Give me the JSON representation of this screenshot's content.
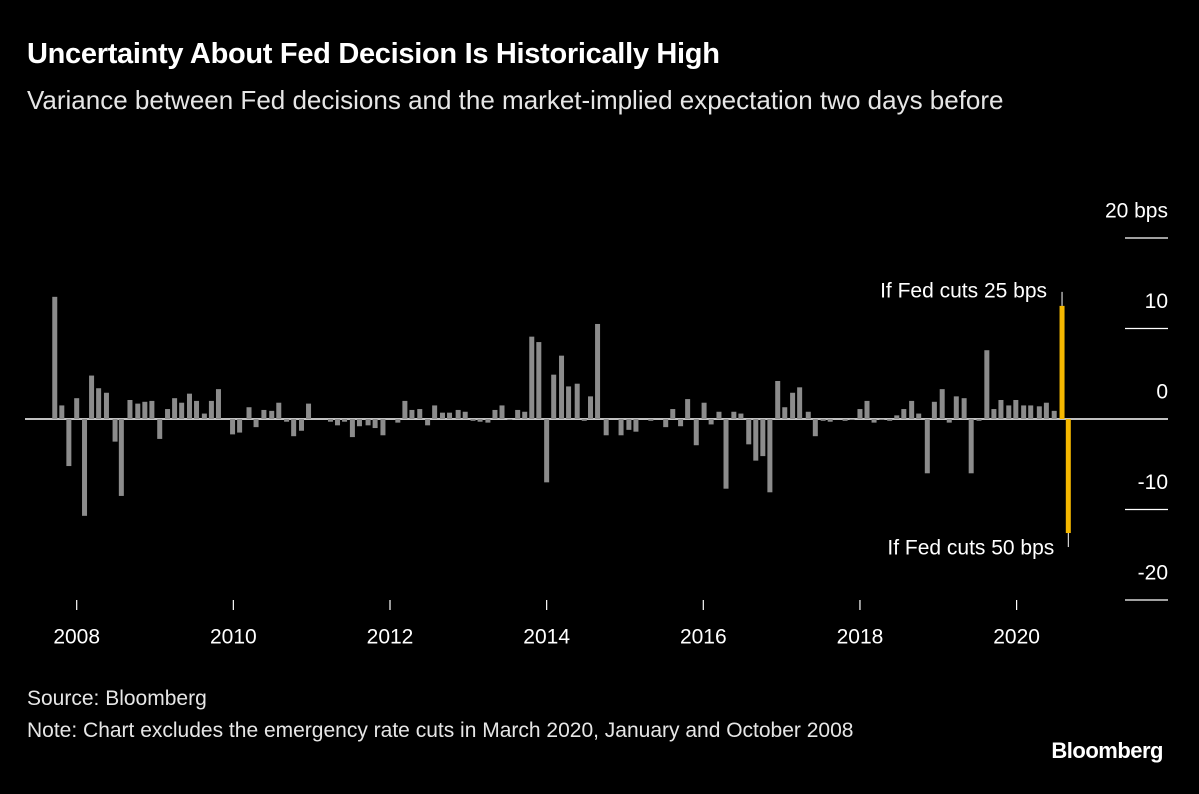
{
  "chart_data": {
    "type": "bar",
    "title": "Uncertainty About Fed Decision Is Historically High",
    "subtitle": "Variance between Fed decisions and the market-implied expectation two days before",
    "source": "Source: Bloomberg",
    "note": "Note: Chart excludes the emergency rate cuts in March 2020, January and October 2008",
    "brand": "Bloomberg",
    "color": "#8c8c8c",
    "x": [
      2007.72,
      2007.81,
      2007.9,
      2008.0,
      2008.1,
      2008.19,
      2008.28,
      2008.38,
      2008.49,
      2008.57,
      2008.68,
      2008.78,
      2008.87,
      2008.96,
      2009.06,
      2009.16,
      2009.25,
      2009.34,
      2009.44,
      2009.53,
      2009.63,
      2009.72,
      2009.81,
      2009.99,
      2010.08,
      2010.2,
      2010.29,
      2010.39,
      2010.49,
      2010.58,
      2010.68,
      2010.77,
      2010.87,
      2010.96,
      2011.24,
      2011.33,
      2011.42,
      2011.52,
      2011.61,
      2011.72,
      2011.81,
      2011.91,
      2012.1,
      2012.19,
      2012.28,
      2012.38,
      2012.48,
      2012.57,
      2012.67,
      2012.76,
      2012.87,
      2012.96,
      2013.06,
      2013.15,
      2013.25,
      2013.34,
      2013.43,
      2013.53,
      2013.63,
      2013.72,
      2013.81,
      2013.9,
      2014.0,
      2014.09,
      2014.19,
      2014.28,
      2014.39,
      2014.48,
      2014.56,
      2014.65,
      2014.76,
      2014.95,
      2015.05,
      2015.14,
      2015.33,
      2015.52,
      2015.61,
      2015.71,
      2015.8,
      2015.91,
      2016.01,
      2016.1,
      2016.2,
      2016.29,
      2016.39,
      2016.48,
      2016.58,
      2016.67,
      2016.76,
      2016.85,
      2016.95,
      2017.04,
      2017.14,
      2017.23,
      2017.34,
      2017.43,
      2017.53,
      2017.62,
      2017.81,
      2017.9,
      2018.0,
      2018.09,
      2018.18,
      2018.28,
      2018.38,
      2018.47,
      2018.56,
      2018.66,
      2018.75,
      2018.86,
      2018.95,
      2019.05,
      2019.14,
      2019.23,
      2019.33,
      2019.42,
      2019.52,
      2019.62,
      2019.71,
      2019.8,
      2019.9,
      2019.99,
      2020.09,
      2020.18,
      2020.29,
      2020.38,
      2020.48
    ],
    "values": [
      13.5,
      1.5,
      -5.2,
      2.3,
      -10.7,
      4.8,
      3.4,
      2.9,
      -2.5,
      -8.5,
      2.1,
      1.7,
      1.9,
      2.0,
      -2.2,
      1.1,
      2.3,
      1.8,
      2.8,
      2.0,
      0.6,
      2.0,
      3.3,
      -1.7,
      -1.5,
      1.3,
      -0.9,
      1.0,
      0.9,
      1.8,
      -0.3,
      -1.9,
      -1.3,
      1.7,
      -0.3,
      -0.7,
      -0.3,
      -2.0,
      -0.8,
      -0.7,
      -1.0,
      -1.8,
      -0.4,
      2.0,
      1.0,
      1.1,
      -0.7,
      1.5,
      0.7,
      0.7,
      1.0,
      0.8,
      -0.2,
      -0.3,
      -0.4,
      1.0,
      1.5,
      -0.1,
      1.0,
      0.8,
      9.1,
      8.5,
      -7.0,
      4.9,
      7.0,
      3.6,
      3.9,
      -0.2,
      2.5,
      10.5,
      -1.8,
      -1.8,
      -1.2,
      -1.4,
      -0.2,
      -0.9,
      1.1,
      -0.8,
      2.2,
      -2.9,
      1.8,
      -0.6,
      0.8,
      -7.7,
      0.8,
      0.6,
      -2.8,
      -4.6,
      -4.1,
      -8.1,
      4.2,
      1.3,
      2.9,
      3.5,
      0.8,
      -1.9,
      -0.2,
      -0.3,
      -0.2,
      -0.1,
      1.1,
      2.0,
      -0.4,
      -0.1,
      -0.2,
      0.4,
      1.1,
      2.0,
      0.6,
      -6.0,
      1.9,
      3.3,
      -0.4,
      2.5,
      2.3,
      -6.0,
      -0.2,
      7.6,
      1.1,
      2.1,
      1.5,
      2.1,
      1.5,
      1.5,
      1.4,
      1.8,
      0.9
    ],
    "highlight": {
      "color": "#f5b800",
      "x": [
        2020.58,
        2020.66
      ],
      "values": [
        12.5,
        -12.6
      ],
      "annotations": [
        "If Fed cuts 25 bps",
        "If Fed cuts 50 bps"
      ]
    },
    "xlim": [
      2007.34,
      2021.32
    ],
    "xticks": [
      2008,
      2010,
      2012,
      2014,
      2016,
      2018,
      2020
    ],
    "ylim": [
      -20,
      20
    ],
    "yticks": [
      {
        "value": 20,
        "label": "20 bps"
      },
      10,
      0,
      -10,
      -20
    ]
  }
}
